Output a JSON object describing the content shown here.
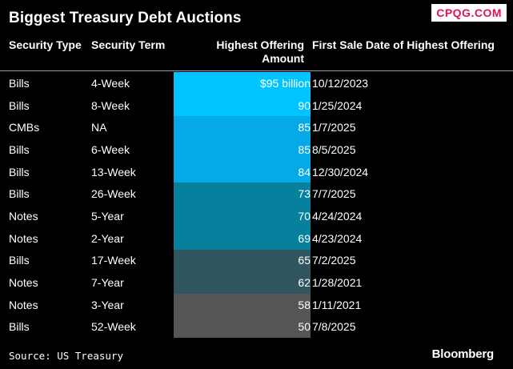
{
  "title": "Biggest Treasury Debt Auctions",
  "watermark": "CPQG.COM",
  "headers": {
    "security_type": "Security Type",
    "security_term": "Security Term",
    "amount": "Highest Offering Amount",
    "date": "First Sale Date of Highest Offering"
  },
  "chart_data": {
    "type": "table",
    "title": "Biggest Treasury Debt Auctions",
    "columns": [
      "Security Type",
      "Security Term",
      "Highest Offering Amount",
      "First Sale Date of Highest Offering"
    ],
    "rows": [
      {
        "type": "Bills",
        "term": "4-Week",
        "amount": 95,
        "amount_label": "$95 billion",
        "date": "10/12/2023",
        "color": "#00c4ff"
      },
      {
        "type": "Bills",
        "term": "8-Week",
        "amount": 90,
        "amount_label": "90",
        "date": "1/25/2024",
        "color": "#00c4ff"
      },
      {
        "type": "CMBs",
        "term": "NA",
        "amount": 85,
        "amount_label": "85",
        "date": "1/7/2025",
        "color": "#05a9e6"
      },
      {
        "type": "Bills",
        "term": "6-Week",
        "amount": 85,
        "amount_label": "85",
        "date": "8/5/2025",
        "color": "#05a9e6"
      },
      {
        "type": "Bills",
        "term": "13-Week",
        "amount": 84,
        "amount_label": "84",
        "date": "12/30/2024",
        "color": "#05a9e6"
      },
      {
        "type": "Bills",
        "term": "26-Week",
        "amount": 73,
        "amount_label": "73",
        "date": "7/7/2025",
        "color": "#06809c"
      },
      {
        "type": "Notes",
        "term": "5-Year",
        "amount": 70,
        "amount_label": "70",
        "date": "4/24/2024",
        "color": "#06809c"
      },
      {
        "type": "Notes",
        "term": "2-Year",
        "amount": 69,
        "amount_label": "69",
        "date": "4/23/2024",
        "color": "#06809c"
      },
      {
        "type": "Bills",
        "term": "17-Week",
        "amount": 65,
        "amount_label": "65",
        "date": "7/2/2025",
        "color": "#2f5560"
      },
      {
        "type": "Notes",
        "term": "7-Year",
        "amount": 62,
        "amount_label": "62",
        "date": "1/28/2021",
        "color": "#2f5560"
      },
      {
        "type": "Notes",
        "term": "3-Year",
        "amount": 58,
        "amount_label": "58",
        "date": "1/11/2021",
        "color": "#555555"
      },
      {
        "type": "Bills",
        "term": "52-Week",
        "amount": 50,
        "amount_label": "50",
        "date": "7/8/2025",
        "color": "#555555"
      }
    ]
  },
  "source": "Source: US Treasury",
  "brand": "Bloomberg"
}
